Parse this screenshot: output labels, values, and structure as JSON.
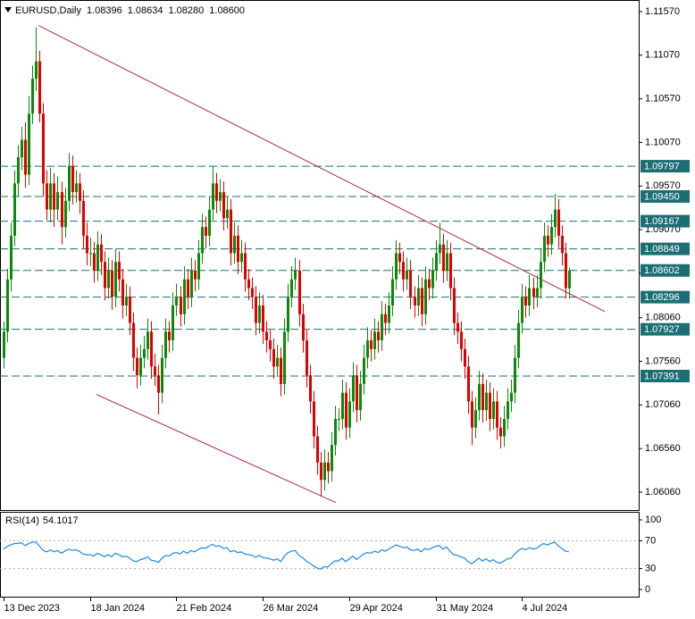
{
  "chart_data": {
    "type": "candlestick",
    "title": "EURUSD,Daily",
    "last_values": [
      {
        "value": 1.08396,
        "label": "1.08396"
      },
      {
        "value": 1.08634,
        "label": "1.08634"
      },
      {
        "value": 1.0828,
        "label": "1.08280"
      },
      {
        "value": 1.086,
        "label": "1.08600"
      }
    ],
    "bull_color": "#0a8a0a",
    "bear_color": "#e00000",
    "xlim": [
      -1,
      176.4
    ],
    "ylim": [
      1.05855,
      1.11672
    ],
    "yticks": [
      {
        "value": 1.1157,
        "label": "1.11570"
      },
      {
        "value": 1.1107,
        "label": "1.11070"
      },
      {
        "value": 1.1057,
        "label": "1.10570"
      },
      {
        "value": 1.1007,
        "label": "1.10070"
      },
      {
        "value": 1.0957,
        "label": "1.09570"
      },
      {
        "value": 1.0907,
        "label": "1.09070"
      },
      {
        "value": 1.0857,
        "label": "1.08570"
      },
      {
        "value": 1.0806,
        "label": "1.08060"
      },
      {
        "value": 1.0756,
        "label": "1.07560"
      },
      {
        "value": 1.0706,
        "label": "1.07060"
      },
      {
        "value": 1.0656,
        "label": "1.06560"
      },
      {
        "value": 1.0606,
        "label": "1.06060"
      }
    ],
    "levels": [
      1.09797,
      {
        "value": 1.0945,
        "label": "1.09450"
      },
      1.09167,
      1.08849,
      1.08602,
      1.08296,
      1.07927,
      1.07391
    ],
    "level_color": "#1b6f74",
    "trendline_color": "#b0245a",
    "trendlines": [
      {
        "from": {
          "index": 9.7,
          "price": 1.1141
        },
        "to": {
          "index": 167,
          "price": 1.0813
        }
      },
      {
        "from": {
          "index": 25.8,
          "price": 1.0718
        },
        "to": {
          "index": 92.3,
          "price": 1.0594
        }
      }
    ],
    "x_labels": [
      {
        "index": 0,
        "label": "13 Dec 2023"
      },
      {
        "index": 24,
        "label": "18 Jan 2024"
      },
      {
        "index": 48,
        "label": "21 Feb 2024"
      },
      {
        "index": 72,
        "label": "26 Mar 2024"
      },
      {
        "index": 96,
        "label": "29 Apr 2024"
      },
      {
        "index": 120,
        "label": "31 May 2024"
      },
      {
        "index": 144,
        "label": "4 Jul 2024"
      }
    ],
    "candles": [
      [
        1.076,
        1.0802,
        1.0748,
        1.079
      ],
      [
        1.079,
        1.0862,
        1.0778,
        1.085
      ],
      [
        1.085,
        1.0915,
        1.0836,
        1.09
      ],
      [
        1.09,
        1.0975,
        1.0888,
        1.096
      ],
      [
        1.096,
        1.1004,
        1.0945,
        1.099
      ],
      [
        1.099,
        1.1025,
        1.0975,
        1.101
      ],
      [
        1.101,
        1.103,
        1.0955,
        1.097
      ],
      [
        1.097,
        1.106,
        1.0958,
        1.104
      ],
      [
        1.104,
        1.1095,
        1.1028,
        1.108
      ],
      [
        1.108,
        1.1139,
        1.1066,
        1.11
      ],
      [
        1.11,
        1.1112,
        1.103,
        1.104
      ],
      [
        1.104,
        1.1052,
        1.0945,
        1.096
      ],
      [
        1.096,
        1.0975,
        1.0918,
        1.093
      ],
      [
        1.093,
        1.0978,
        1.0915,
        1.096
      ],
      [
        1.096,
        1.0972,
        1.091,
        1.093
      ],
      [
        1.093,
        1.0968,
        1.0918,
        1.095
      ],
      [
        1.095,
        1.0962,
        1.089,
        1.091
      ],
      [
        1.091,
        1.0955,
        1.0898,
        1.094
      ],
      [
        1.094,
        1.0995,
        1.0928,
        1.098
      ],
      [
        1.098,
        1.0992,
        1.0936,
        1.095
      ],
      [
        1.095,
        1.0975,
        1.0938,
        1.096
      ],
      [
        1.096,
        1.0972,
        1.0925,
        1.094
      ],
      [
        1.094,
        1.0952,
        1.0885,
        1.09
      ],
      [
        1.09,
        1.0915,
        1.0866,
        1.088
      ],
      [
        1.088,
        1.0898,
        1.0865,
        1.088
      ],
      [
        1.088,
        1.0893,
        1.0846,
        1.086
      ],
      [
        1.086,
        1.0905,
        1.0848,
        1.089
      ],
      [
        1.089,
        1.0902,
        1.0855,
        1.087
      ],
      [
        1.087,
        1.0882,
        1.0826,
        1.084
      ],
      [
        1.084,
        1.0875,
        1.0828,
        1.086
      ],
      [
        1.086,
        1.0872,
        1.0815,
        1.083
      ],
      [
        1.083,
        1.0885,
        1.0818,
        1.087
      ],
      [
        1.087,
        1.0882,
        1.0836,
        1.085
      ],
      [
        1.085,
        1.0862,
        1.0805,
        1.082
      ],
      [
        1.082,
        1.0845,
        1.0808,
        1.083
      ],
      [
        1.083,
        1.0842,
        1.0786,
        1.08
      ],
      [
        1.08,
        1.0812,
        1.0745,
        1.076
      ],
      [
        1.076,
        1.0772,
        1.0725,
        1.074
      ],
      [
        1.074,
        1.0775,
        1.0728,
        1.076
      ],
      [
        1.076,
        1.0785,
        1.0748,
        1.077
      ],
      [
        1.077,
        1.0805,
        1.0758,
        1.079
      ],
      [
        1.079,
        1.0802,
        1.0736,
        1.075
      ],
      [
        1.075,
        1.0765,
        1.0728,
        1.074
      ],
      [
        1.074,
        1.0752,
        1.0695,
        1.072
      ],
      [
        1.072,
        1.0775,
        1.0708,
        1.076
      ],
      [
        1.076,
        1.0805,
        1.0748,
        1.079
      ],
      [
        1.079,
        1.0802,
        1.0766,
        1.078
      ],
      [
        1.078,
        1.0835,
        1.0768,
        1.082
      ],
      [
        1.082,
        1.0845,
        1.0808,
        1.083
      ],
      [
        1.083,
        1.0842,
        1.0796,
        1.081
      ],
      [
        1.081,
        1.0865,
        1.0798,
        1.085
      ],
      [
        1.085,
        1.0862,
        1.0816,
        1.083
      ],
      [
        1.083,
        1.0875,
        1.0818,
        1.086
      ],
      [
        1.086,
        1.0872,
        1.0836,
        1.085
      ],
      [
        1.085,
        1.0895,
        1.0838,
        1.088
      ],
      [
        1.088,
        1.0925,
        1.0868,
        1.091
      ],
      [
        1.091,
        1.0922,
        1.0886,
        1.09
      ],
      [
        1.09,
        1.0945,
        1.0888,
        1.093
      ],
      [
        1.093,
        1.098,
        1.0918,
        1.096
      ],
      [
        1.096,
        1.0972,
        1.0926,
        1.094
      ],
      [
        1.094,
        1.0965,
        1.0928,
        1.095
      ],
      [
        1.095,
        1.0962,
        1.0906,
        1.092
      ],
      [
        1.092,
        1.0945,
        1.0908,
        1.093
      ],
      [
        1.093,
        1.0942,
        1.0866,
        1.088
      ],
      [
        1.088,
        1.0915,
        1.0868,
        1.09
      ],
      [
        1.09,
        1.0912,
        1.0856,
        1.087
      ],
      [
        1.087,
        1.0895,
        1.0858,
        1.088
      ],
      [
        1.088,
        1.0892,
        1.0836,
        1.085
      ],
      [
        1.085,
        1.0862,
        1.0826,
        1.084
      ],
      [
        1.084,
        1.0852,
        1.0816,
        1.083
      ],
      [
        1.083,
        1.0842,
        1.0786,
        1.08
      ],
      [
        1.08,
        1.0835,
        1.0788,
        1.082
      ],
      [
        1.082,
        1.0832,
        1.0776,
        1.079
      ],
      [
        1.079,
        1.0802,
        1.0766,
        1.078
      ],
      [
        1.078,
        1.0792,
        1.0756,
        1.077
      ],
      [
        1.077,
        1.0782,
        1.0736,
        1.075
      ],
      [
        1.075,
        1.0775,
        1.0738,
        1.076
      ],
      [
        1.076,
        1.0772,
        1.0716,
        1.073
      ],
      [
        1.073,
        1.0805,
        1.0718,
        1.079
      ],
      [
        1.079,
        1.0845,
        1.0778,
        1.083
      ],
      [
        1.083,
        1.0865,
        1.0818,
        1.085
      ],
      [
        1.085,
        1.0875,
        1.0838,
        1.086
      ],
      [
        1.086,
        1.0872,
        1.0796,
        1.081
      ],
      [
        1.081,
        1.0822,
        1.0766,
        1.078
      ],
      [
        1.078,
        1.0792,
        1.0726,
        1.074
      ],
      [
        1.074,
        1.0752,
        1.0696,
        1.071
      ],
      [
        1.071,
        1.0722,
        1.0656,
        1.067
      ],
      [
        1.067,
        1.0682,
        1.0626,
        1.064
      ],
      [
        1.064,
        1.0652,
        1.0601,
        1.062
      ],
      [
        1.062,
        1.0655,
        1.0608,
        1.064
      ],
      [
        1.064,
        1.0652,
        1.0616,
        1.063
      ],
      [
        1.063,
        1.0675,
        1.0618,
        1.066
      ],
      [
        1.066,
        1.0705,
        1.0648,
        1.069
      ],
      [
        1.069,
        1.0702,
        1.0676,
        1.069
      ],
      [
        1.069,
        1.0735,
        1.0678,
        1.072
      ],
      [
        1.072,
        1.0732,
        1.0666,
        1.068
      ],
      [
        1.068,
        1.0725,
        1.0668,
        1.071
      ],
      [
        1.071,
        1.0755,
        1.0698,
        1.074
      ],
      [
        1.074,
        1.0752,
        1.0686,
        1.07
      ],
      [
        1.07,
        1.0745,
        1.0688,
        1.073
      ],
      [
        1.073,
        1.0775,
        1.0718,
        1.076
      ],
      [
        1.076,
        1.0795,
        1.0748,
        1.078
      ],
      [
        1.078,
        1.0792,
        1.0756,
        1.077
      ],
      [
        1.077,
        1.0805,
        1.0758,
        1.079
      ],
      [
        1.079,
        1.0802,
        1.0766,
        1.078
      ],
      [
        1.078,
        1.0825,
        1.0768,
        1.081
      ],
      [
        1.081,
        1.0822,
        1.0786,
        1.08
      ],
      [
        1.08,
        1.0835,
        1.0788,
        1.082
      ],
      [
        1.082,
        1.0865,
        1.0808,
        1.085
      ],
      [
        1.085,
        1.0895,
        1.0838,
        1.088
      ],
      [
        1.088,
        1.0892,
        1.0856,
        1.087
      ],
      [
        1.087,
        1.0882,
        1.0836,
        1.085
      ],
      [
        1.085,
        1.0875,
        1.0838,
        1.086
      ],
      [
        1.086,
        1.0872,
        1.0816,
        1.083
      ],
      [
        1.083,
        1.0842,
        1.0806,
        1.082
      ],
      [
        1.082,
        1.0855,
        1.0808,
        1.084
      ],
      [
        1.084,
        1.0852,
        1.0796,
        1.081
      ],
      [
        1.081,
        1.0865,
        1.0798,
        1.085
      ],
      [
        1.085,
        1.0862,
        1.0826,
        1.084
      ],
      [
        1.084,
        1.0875,
        1.0828,
        1.086
      ],
      [
        1.086,
        1.0895,
        1.0848,
        1.088
      ],
      [
        1.088,
        1.0915,
        1.0868,
        1.089
      ],
      [
        1.089,
        1.0902,
        1.0846,
        1.086
      ],
      [
        1.086,
        1.0895,
        1.0848,
        1.088
      ],
      [
        1.088,
        1.0892,
        1.0826,
        1.084
      ],
      [
        1.084,
        1.0852,
        1.0786,
        1.08
      ],
      [
        1.08,
        1.0812,
        1.0776,
        1.079
      ],
      [
        1.079,
        1.0802,
        1.0756,
        1.077
      ],
      [
        1.077,
        1.0782,
        1.0736,
        1.075
      ],
      [
        1.075,
        1.0762,
        1.0696,
        1.071
      ],
      [
        1.071,
        1.0722,
        1.066,
        1.068
      ],
      [
        1.068,
        1.0715,
        1.0668,
        1.07
      ],
      [
        1.07,
        1.0745,
        1.0688,
        1.073
      ],
      [
        1.073,
        1.0742,
        1.0686,
        1.07
      ],
      [
        1.07,
        1.0735,
        1.0688,
        1.072
      ],
      [
        1.072,
        1.0732,
        1.0676,
        1.069
      ],
      [
        1.069,
        1.0725,
        1.0678,
        1.071
      ],
      [
        1.071,
        1.0722,
        1.0666,
        1.068
      ],
      [
        1.068,
        1.0692,
        1.0656,
        1.067
      ],
      [
        1.067,
        1.0705,
        1.0658,
        1.069
      ],
      [
        1.069,
        1.0725,
        1.0678,
        1.071
      ],
      [
        1.071,
        1.0735,
        1.0698,
        1.072
      ],
      [
        1.072,
        1.0775,
        1.0708,
        1.076
      ],
      [
        1.076,
        1.0815,
        1.0748,
        1.08
      ],
      [
        1.08,
        1.0845,
        1.0788,
        1.083
      ],
      [
        1.083,
        1.0842,
        1.0806,
        1.082
      ],
      [
        1.082,
        1.0855,
        1.0808,
        1.084
      ],
      [
        1.084,
        1.0852,
        1.0816,
        1.083
      ],
      [
        1.083,
        1.0855,
        1.0818,
        1.084
      ],
      [
        1.084,
        1.0885,
        1.0828,
        1.087
      ],
      [
        1.087,
        1.0915,
        1.0858,
        1.09
      ],
      [
        1.09,
        1.0912,
        1.0876,
        1.089
      ],
      [
        1.089,
        1.0925,
        1.0878,
        1.091
      ],
      [
        1.091,
        1.0948,
        1.0898,
        1.093
      ],
      [
        1.093,
        1.0942,
        1.0886,
        1.09
      ],
      [
        1.09,
        1.0912,
        1.0866,
        1.088
      ],
      [
        1.088,
        1.0892,
        1.0828,
        1.084
      ],
      [
        1.08396,
        1.08634,
        1.0828,
        1.086
      ]
    ],
    "rsi": {
      "title": "RSI(14)",
      "color": "#1e88e5",
      "ylim": [
        -10.3,
        111.5
      ],
      "yticks": [
        100,
        70,
        30,
        0
      ],
      "levels": [
        70,
        30
      ],
      "values": [
        58,
        62,
        64,
        66,
        66,
        67,
        63,
        66,
        68,
        68,
        62,
        56,
        54,
        57,
        54,
        56,
        52,
        55,
        58,
        56,
        57,
        55,
        51,
        50,
        50,
        48,
        52,
        50,
        47,
        50,
        47,
        52,
        50,
        47,
        48,
        45,
        41,
        40,
        43,
        44,
        47,
        42,
        41,
        39,
        45,
        49,
        48,
        52,
        53,
        51,
        55,
        52,
        56,
        54,
        57,
        60,
        59,
        62,
        65,
        62,
        63,
        59,
        60,
        54,
        56,
        53,
        54,
        51,
        50,
        49,
        46,
        49,
        46,
        45,
        44,
        42,
        44,
        40,
        48,
        53,
        55,
        56,
        49,
        46,
        41,
        38,
        34,
        31,
        29,
        33,
        32,
        37,
        41,
        41,
        45,
        40,
        44,
        48,
        43,
        47,
        51,
        53,
        52,
        55,
        53,
        57,
        55,
        58,
        61,
        64,
        62,
        60,
        61,
        57,
        56,
        58,
        54,
        59,
        57,
        60,
        62,
        63,
        58,
        61,
        55,
        50,
        49,
        47,
        45,
        40,
        37,
        41,
        45,
        41,
        44,
        40,
        43,
        39,
        38,
        41,
        44,
        45,
        51,
        56,
        59,
        57,
        60,
        58,
        59,
        63,
        66,
        64,
        66,
        68,
        63,
        59,
        55,
        54.1017
      ]
    }
  }
}
